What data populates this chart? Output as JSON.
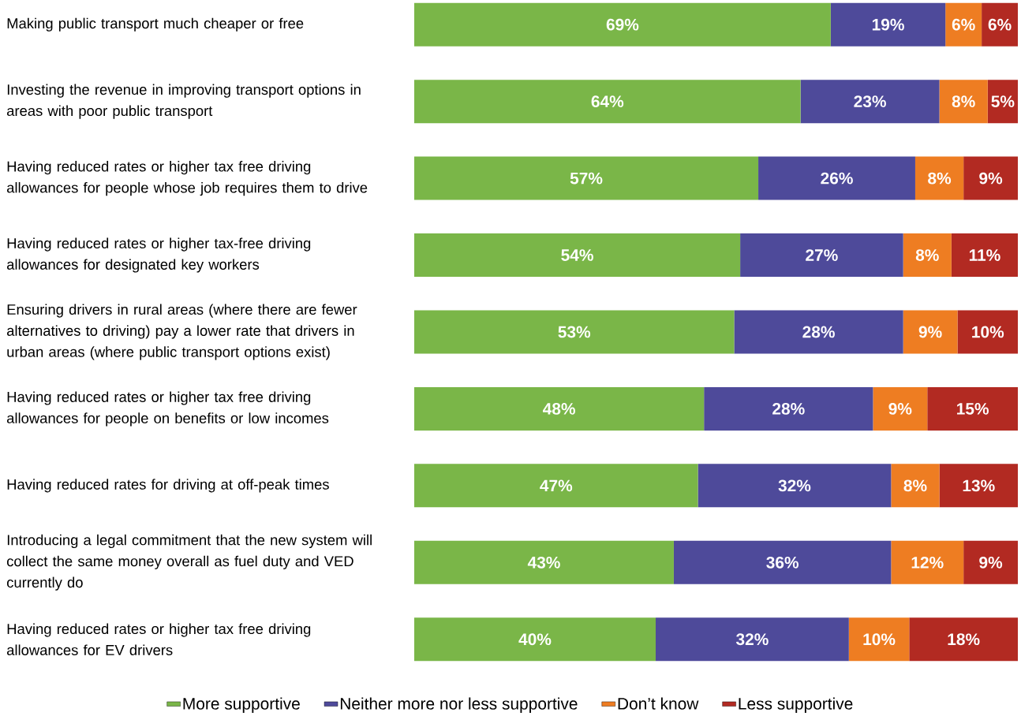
{
  "chart_data": {
    "type": "bar",
    "orientation": "horizontal",
    "stacked": true,
    "legend": "bottom",
    "xlim": [
      0,
      100
    ],
    "tick_labels": "y",
    "categories": [
      "Making public transport much cheaper or free",
      "Investing the revenue in improving transport options in areas with poor public transport",
      "Having reduced rates or higher tax free driving allowances for people whose job requires them to drive",
      "Having reduced rates or higher tax-free driving allowances for designated key workers",
      "Ensuring drivers in rural areas (where there are fewer alternatives to driving) pay a lower rate that drivers in urban areas (where public transport options exist)",
      "Having reduced rates or higher tax free driving allowances for people on benefits or low incomes",
      "Having reduced rates for driving at off-peak times",
      "Introducing a legal commitment that the new system will collect the same money overall as fuel duty and VED currently do",
      "Having reduced rates or higher tax free driving allowances for EV drivers"
    ],
    "series": [
      {
        "name": "More supportive",
        "color": "#7ab648",
        "values": [
          69,
          64,
          57,
          54,
          53,
          48,
          47,
          43,
          40
        ],
        "value_labels": [
          "69%",
          "64%",
          "57%",
          "54%",
          "53%",
          "48%",
          "47%",
          "43%",
          "40%"
        ]
      },
      {
        "name": "Neither more nor less supportive",
        "color": "#4e4a9a",
        "values": [
          19,
          23,
          26,
          27,
          28,
          28,
          32,
          36,
          32
        ],
        "value_labels": [
          "19%",
          "23%",
          "26%",
          "27%",
          "28%",
          "28%",
          "32%",
          "36%",
          "32%"
        ]
      },
      {
        "name": "Don’t know",
        "color": "#ee7d22",
        "values": [
          6,
          8,
          8,
          8,
          9,
          9,
          8,
          12,
          10
        ],
        "value_labels": [
          "6%",
          "8%",
          "8%",
          "8%",
          "9%",
          "9%",
          "8%",
          "12%",
          "10%"
        ]
      },
      {
        "name": "Less supportive",
        "color": "#b22a22",
        "values": [
          6,
          5,
          9,
          11,
          10,
          15,
          13,
          9,
          18
        ],
        "value_labels": [
          "6%",
          "5%",
          "9%",
          "11%",
          "10%",
          "15%",
          "13%",
          "9%",
          "18%"
        ]
      }
    ]
  }
}
